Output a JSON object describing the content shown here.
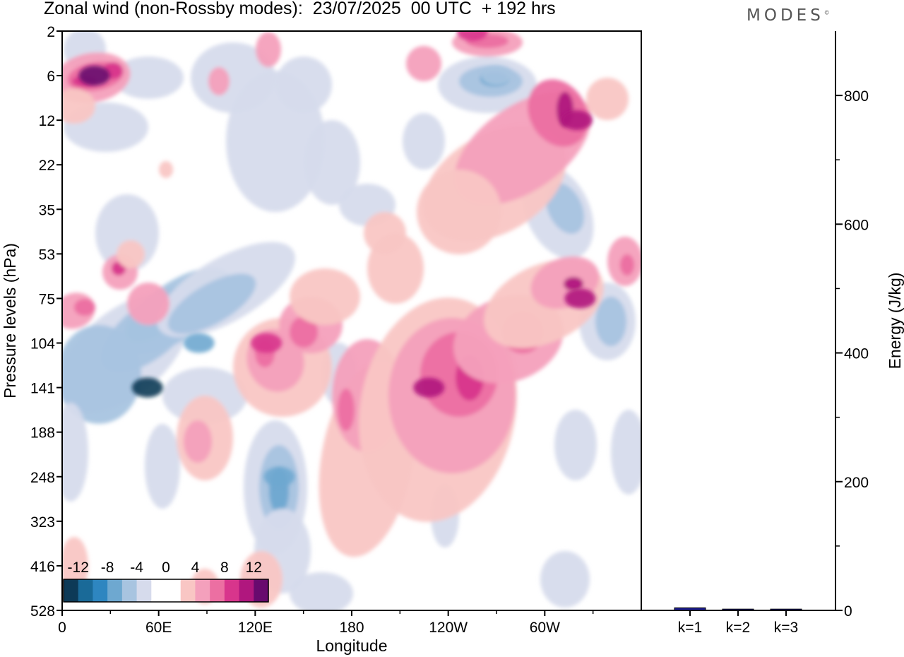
{
  "title": "Zonal wind (non-Rossby modes):  23/07/2025  00 UTC  + 192 hrs",
  "logo": "MODES",
  "chart_data": [
    {
      "type": "heatmap",
      "title": "Zonal wind (non-Rossby modes):  23/07/2025  00 UTC  + 192 hrs",
      "xlabel": "Longitude",
      "ylabel": "Pressure levels (hPa)",
      "x_ticks": [
        "0",
        "60E",
        "120E",
        "180",
        "120W",
        "60W"
      ],
      "x_range": [
        0,
        360
      ],
      "x_tick_degrees": [
        0,
        60,
        120,
        180,
        240,
        300
      ],
      "y_ticks": [
        "2",
        "6",
        "12",
        "22",
        "35",
        "53",
        "75",
        "104",
        "141",
        "188",
        "248",
        "323",
        "416",
        "528"
      ],
      "colorbar": {
        "labels": [
          "-12",
          "-8",
          "-4",
          "0",
          "4",
          "8",
          "12"
        ],
        "levels": [
          -14,
          -12,
          -10,
          -8,
          -6,
          -4,
          -2,
          2,
          4,
          6,
          8,
          10,
          12,
          14
        ],
        "colors": [
          "#0d3a57",
          "#1a6a98",
          "#2e86c0",
          "#6ea8d0",
          "#a8c4e0",
          "#d6dbec",
          "#ffffff",
          "#ffffff",
          "#f9c6c4",
          "#f4a0bc",
          "#ec6fa2",
          "#d8358c",
          "#b0177e",
          "#680a6e"
        ],
        "placement": "bottom-left"
      },
      "features": [
        {
          "lon": 20,
          "level": "6",
          "value": 12
        },
        {
          "lon": 53,
          "level": "141",
          "value": -16
        },
        {
          "lon": 85,
          "level": "104",
          "value": -10
        },
        {
          "lon": 135,
          "level": "248",
          "value": -9
        },
        {
          "lon": 228,
          "level": "141",
          "value": 11
        },
        {
          "lon": 320,
          "level": "12",
          "value": 11
        },
        {
          "lon": 322,
          "level": "75",
          "value": 10
        },
        {
          "lon": 270,
          "level": "6",
          "value": -8
        },
        {
          "lon": 127,
          "level": "104",
          "value": 9
        },
        {
          "lon": 255,
          "level": "2",
          "value": 9
        }
      ]
    },
    {
      "type": "bar",
      "ylabel": "Energy (J/kg)",
      "categories": [
        "k=1",
        "k=2",
        "k=3"
      ],
      "values": [
        4,
        2,
        2
      ],
      "ylim": [
        0,
        900
      ],
      "y_ticks": [
        "0",
        "200",
        "400",
        "600",
        "800"
      ],
      "bar_color": "#1a1a8c"
    }
  ]
}
